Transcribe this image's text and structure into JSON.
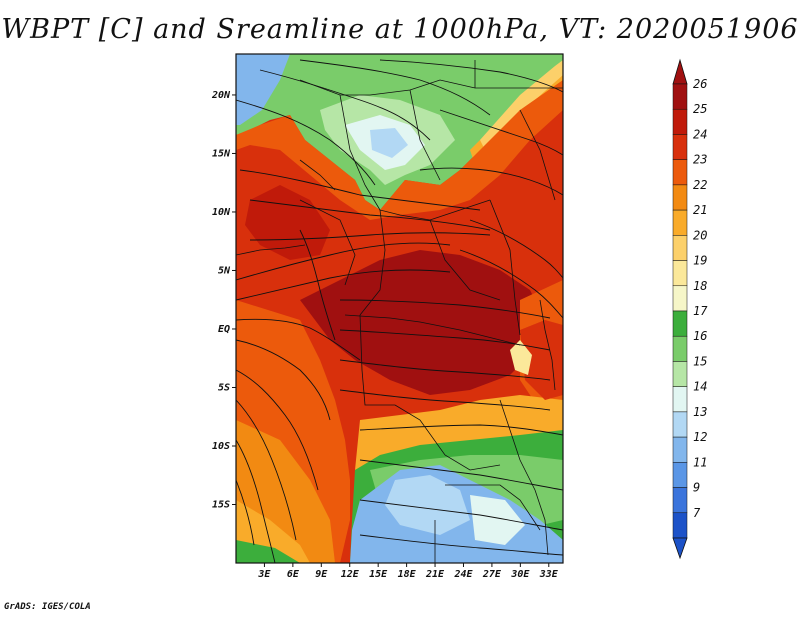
{
  "title": "WBPT [C] and Sreamline at 1000hPa, VT: 2020051906",
  "footer": "GrADS: IGES/COLA",
  "map": {
    "lon_labels": [
      "3E",
      "6E",
      "9E",
      "12E",
      "15E",
      "18E",
      "21E",
      "24E",
      "27E",
      "30E",
      "33E"
    ],
    "lat_labels": [
      "20N",
      "15N",
      "10N",
      "5N",
      "EQ",
      "5S",
      "10S",
      "15S"
    ],
    "lon_values": [
      3,
      6,
      9,
      12,
      15,
      18,
      21,
      24,
      27,
      30,
      33
    ],
    "lat_values": [
      20,
      15,
      10,
      5,
      0,
      -5,
      -10,
      -15
    ],
    "lon_range": [
      0,
      34.5
    ],
    "lat_range": [
      -20,
      23.5
    ]
  },
  "colorbar": {
    "levels": [
      "26",
      "25",
      "24",
      "23",
      "22",
      "21",
      "20",
      "19",
      "18",
      "17",
      "16",
      "15",
      "14",
      "13",
      "12",
      "11",
      "9",
      "7"
    ],
    "colors": [
      "#a01010",
      "#c01a0a",
      "#d8300c",
      "#ec5a0c",
      "#f28a12",
      "#f9ab2a",
      "#fcd06a",
      "#fbe89a",
      "#f6f6c8",
      "#3cae3c",
      "#7acc6a",
      "#b6e6a6",
      "#e2f6f2",
      "#b2d8f4",
      "#82b6ec",
      "#5a96e6",
      "#3a74dc",
      "#1c52c8"
    ]
  }
}
